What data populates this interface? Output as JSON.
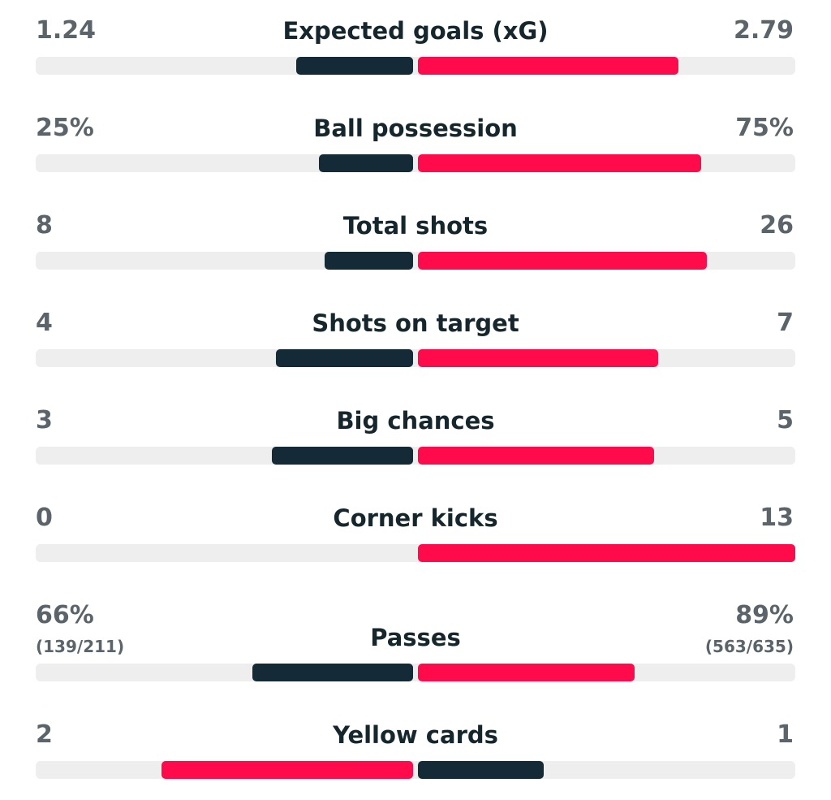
{
  "colors": {
    "home_bar": "#142a36",
    "away_bar": "#ff0a4a",
    "track": "#eeeeee",
    "value_text": "#5b646a",
    "label_text": "#15262d"
  },
  "stats": [
    {
      "label": "Expected goals (xG)",
      "home": "1.24",
      "away": "2.79",
      "home_fill": 0.31,
      "away_fill": 0.69,
      "home_color": "dark",
      "away_color": "red"
    },
    {
      "label": "Ball possession",
      "home": "25%",
      "away": "75%",
      "home_fill": 0.25,
      "away_fill": 0.75,
      "home_color": "dark",
      "away_color": "red"
    },
    {
      "label": "Total shots",
      "home": "8",
      "away": "26",
      "home_fill": 0.235,
      "away_fill": 0.765,
      "home_color": "dark",
      "away_color": "red"
    },
    {
      "label": "Shots on target",
      "home": "4",
      "away": "7",
      "home_fill": 0.364,
      "away_fill": 0.636,
      "home_color": "dark",
      "away_color": "red"
    },
    {
      "label": "Big chances",
      "home": "3",
      "away": "5",
      "home_fill": 0.375,
      "away_fill": 0.625,
      "home_color": "dark",
      "away_color": "red"
    },
    {
      "label": "Corner kicks",
      "home": "0",
      "away": "13",
      "home_fill": 0,
      "away_fill": 1,
      "home_color": "dark",
      "away_color": "red"
    },
    {
      "label": "Passes",
      "home": "66%",
      "away": "89%",
      "home_sub": "(139/211)",
      "away_sub": "(563/635)",
      "home_fill": 0.426,
      "away_fill": 0.574,
      "home_color": "dark",
      "away_color": "red"
    },
    {
      "label": "Yellow cards",
      "home": "2",
      "away": "1",
      "home_fill": 0.667,
      "away_fill": 0.333,
      "home_color": "red",
      "away_color": "dark"
    }
  ]
}
